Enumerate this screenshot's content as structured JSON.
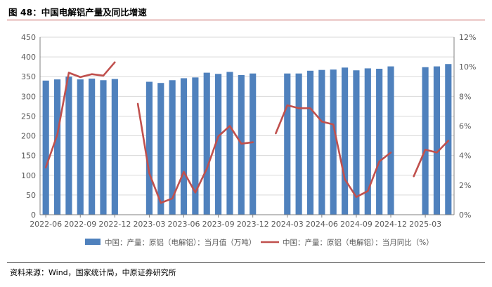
{
  "figure_title": "图 48：中国电解铝产量及同比增速",
  "source_note": "资料来源：Wind，国家统计局，中原证券研究所",
  "colors": {
    "bar": "#4f81bd",
    "line": "#c0504d",
    "grid": "#d9d9d9",
    "axis": "#808080",
    "text": "#595959"
  },
  "chart_data": {
    "type": "bar",
    "title": "",
    "x_tick_labels": [
      "2022-06",
      "2022-09",
      "2022-12",
      "2023-03",
      "2023-06",
      "2023-09",
      "2023-12",
      "2024-03",
      "2024-06",
      "2024-09",
      "2024-12",
      "2025-03"
    ],
    "x_tick_months": [
      "2022-06",
      "2022-09",
      "2022-12",
      "2023-03",
      "2023-06",
      "2023-09",
      "2023-12",
      "2024-03",
      "2024-06",
      "2024-09",
      "2024-12",
      "2025-03"
    ],
    "x_months": [
      "2022-06",
      "2022-07",
      "2022-08",
      "2022-09",
      "2022-10",
      "2022-11",
      "2022-12",
      "2023-01",
      "2023-02",
      "2023-03",
      "2023-04",
      "2023-05",
      "2023-06",
      "2023-07",
      "2023-08",
      "2023-09",
      "2023-10",
      "2023-11",
      "2023-12",
      "2024-01",
      "2024-02",
      "2024-03",
      "2024-04",
      "2024-05",
      "2024-06",
      "2024-07",
      "2024-08",
      "2024-09",
      "2024-10",
      "2024-11",
      "2024-12",
      "2025-01",
      "2025-02",
      "2025-03",
      "2025-04",
      "2025-05"
    ],
    "left_axis": {
      "ylim": [
        0,
        450
      ],
      "ticks": [
        0,
        50,
        100,
        150,
        200,
        250,
        300,
        350,
        400,
        450
      ]
    },
    "right_axis": {
      "ylim": [
        0,
        12
      ],
      "ticks": [
        "0%",
        "2%",
        "4%",
        "6%",
        "8%",
        "10%",
        "12%"
      ]
    },
    "grid": true,
    "legend_position": "bottom",
    "series": [
      {
        "name": "中国：产量：原铝（电解铝）：当月值（万吨）",
        "type": "bar",
        "axis": "left",
        "values": [
          340,
          343,
          350,
          343,
          345,
          341,
          344,
          null,
          null,
          337,
          334,
          341,
          346,
          348,
          360,
          357,
          362,
          354,
          358,
          null,
          null,
          358,
          358,
          365,
          367,
          368,
          373,
          366,
          371,
          370,
          376,
          null,
          null,
          374,
          376,
          382
        ]
      },
      {
        "name": "中国：产量：原铝（电解铝）：当月同比（%）",
        "type": "line",
        "axis": "right",
        "values": [
          3.2,
          5.4,
          9.6,
          9.3,
          9.5,
          9.4,
          10.3,
          null,
          7.5,
          2.8,
          0.8,
          1.1,
          2.9,
          1.5,
          3.1,
          5.3,
          6.0,
          4.8,
          4.9,
          null,
          5.5,
          7.4,
          7.2,
          7.2,
          6.3,
          6.1,
          2.4,
          1.2,
          1.6,
          3.6,
          4.2,
          null,
          2.6,
          4.4,
          4.2,
          5.0
        ]
      }
    ]
  }
}
